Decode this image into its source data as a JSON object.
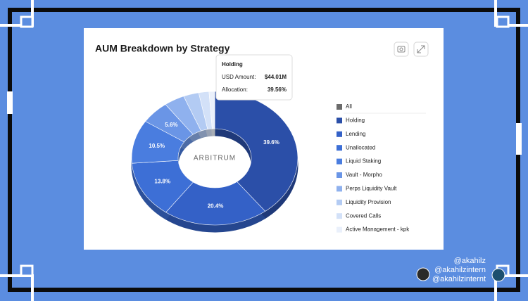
{
  "chart_data": {
    "type": "pie",
    "title": "AUM Breakdown by Strategy",
    "categories": [
      "Holding",
      "Lending",
      "Unallocated",
      "Liquid Staking",
      "Vault - Morpho",
      "Perps Liquidity Vault",
      "Liquidity Provision",
      "Covered Calls",
      "Active Management - kpk"
    ],
    "values": [
      39.6,
      20.4,
      13.8,
      10.5,
      5.6,
      4.0,
      3.0,
      2.0,
      1.1
    ],
    "value_labels": [
      "39.6%",
      "20.4%",
      "13.8%",
      "10.5%",
      "5.6%",
      null,
      null,
      null,
      null
    ],
    "colors": [
      "#2b4fa8",
      "#3461c7",
      "#3d6fd6",
      "#4a7ddf",
      "#6a95e6",
      "#8fb1ee",
      "#b3cbf3",
      "#d3e1f8",
      "#eaf0fb"
    ],
    "legend_all": {
      "label": "All",
      "color": "#6b6b6b"
    },
    "center_label": "ARBITRUM",
    "tooltip": {
      "title": "Holding",
      "rows": [
        {
          "label": "USD Amount:",
          "value": "$44.01M"
        },
        {
          "label": "Allocation:",
          "value": "39.56%"
        }
      ]
    }
  },
  "watermarks": [
    "@akahilz",
    "@akahilzintern",
    "@akahilzinternt"
  ]
}
